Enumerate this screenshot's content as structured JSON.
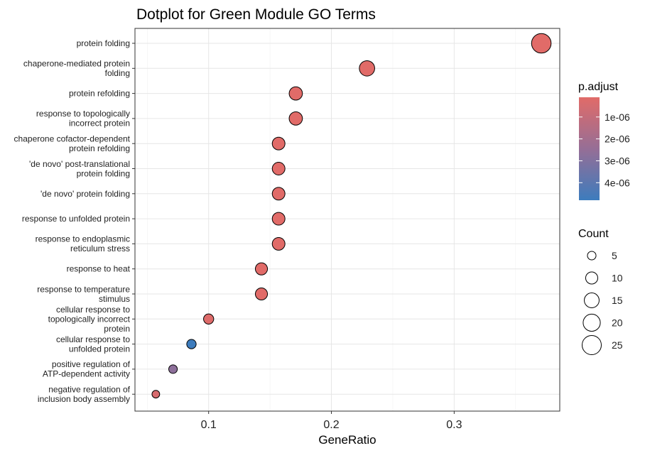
{
  "chart_data": {
    "type": "scatter",
    "title": "Dotplot for Green Module GO Terms",
    "xlabel": "GeneRatio",
    "ylabel": "",
    "xlim": [
      0.04,
      0.386
    ],
    "x_ticks": [
      "0.1",
      "0.2",
      "0.3"
    ],
    "x_tick_values": [
      0.1,
      0.2,
      0.3
    ],
    "grid": true,
    "legend_placement": "right",
    "color_legend": {
      "title": "p.adjust",
      "labels": [
        "1e-06",
        "2e-06",
        "3e-06",
        "4e-06"
      ],
      "values": [
        1e-06,
        2e-06,
        3e-06,
        4e-06
      ],
      "min": 1e-07,
      "max": 4.8e-06,
      "low_color": "#e16b68",
      "high_color": "#3d7cbd"
    },
    "size_legend": {
      "title": "Count",
      "labels": [
        "5",
        "10",
        "15",
        "20",
        "25"
      ],
      "values": [
        5,
        10,
        15,
        20,
        25
      ]
    },
    "points": [
      {
        "term": [
          "protein folding"
        ],
        "x": 0.371,
        "count": 26,
        "p_adjust": 1e-07
      },
      {
        "term": [
          "chaperone-mediated protein",
          "folding"
        ],
        "x": 0.229,
        "count": 16,
        "p_adjust": 1e-07
      },
      {
        "term": [
          "protein refolding"
        ],
        "x": 0.171,
        "count": 12,
        "p_adjust": 1e-07
      },
      {
        "term": [
          "response to topologically",
          "incorrect protein"
        ],
        "x": 0.171,
        "count": 12,
        "p_adjust": 1e-07
      },
      {
        "term": [
          "chaperone cofactor-dependent",
          "protein refolding"
        ],
        "x": 0.157,
        "count": 11,
        "p_adjust": 1e-07
      },
      {
        "term": [
          "'de novo' post-translational",
          "protein folding"
        ],
        "x": 0.157,
        "count": 11,
        "p_adjust": 1e-07
      },
      {
        "term": [
          "'de novo' protein folding"
        ],
        "x": 0.157,
        "count": 11,
        "p_adjust": 1e-07
      },
      {
        "term": [
          "response to unfolded protein"
        ],
        "x": 0.157,
        "count": 11,
        "p_adjust": 1e-07
      },
      {
        "term": [
          "response to endoplasmic",
          "reticulum stress"
        ],
        "x": 0.157,
        "count": 11,
        "p_adjust": 1e-07
      },
      {
        "term": [
          "response to heat"
        ],
        "x": 0.143,
        "count": 10,
        "p_adjust": 1e-07
      },
      {
        "term": [
          "response to temperature",
          "stimulus"
        ],
        "x": 0.143,
        "count": 10,
        "p_adjust": 1e-07
      },
      {
        "term": [
          "cellular response to",
          "topologically incorrect",
          "protein"
        ],
        "x": 0.1,
        "count": 7,
        "p_adjust": 2e-07
      },
      {
        "term": [
          "cellular response to",
          "unfolded protein"
        ],
        "x": 0.086,
        "count": 6,
        "p_adjust": 4.8e-06
      },
      {
        "term": [
          "positive regulation of",
          "ATP-dependent activity"
        ],
        "x": 0.071,
        "count": 5,
        "p_adjust": 2.7e-06
      },
      {
        "term": [
          "negative regulation of",
          "inclusion body assembly"
        ],
        "x": 0.057,
        "count": 4,
        "p_adjust": 4e-07
      }
    ]
  }
}
